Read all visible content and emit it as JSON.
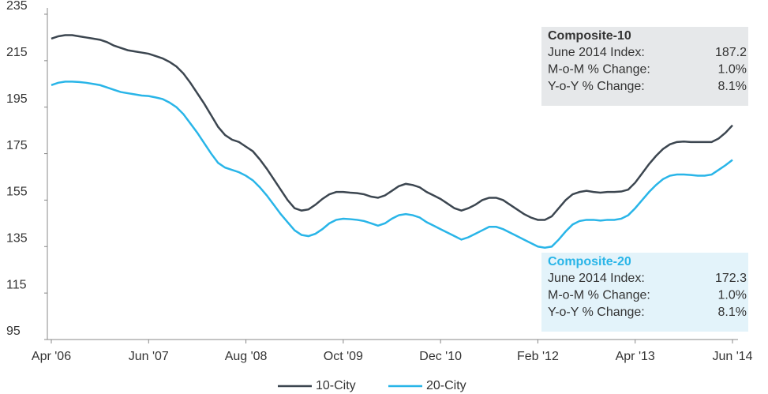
{
  "chart_data": {
    "type": "line",
    "categories": [
      "Apr '06",
      null,
      null,
      null,
      null,
      null,
      null,
      null,
      null,
      null,
      null,
      null,
      null,
      null,
      "Jun '07",
      null,
      null,
      null,
      null,
      null,
      null,
      null,
      null,
      null,
      null,
      null,
      null,
      null,
      "Aug '08",
      null,
      null,
      null,
      null,
      null,
      null,
      null,
      null,
      null,
      null,
      null,
      null,
      null,
      "Oct '09",
      null,
      null,
      null,
      null,
      null,
      null,
      null,
      null,
      null,
      null,
      null,
      null,
      null,
      "Dec '10",
      null,
      null,
      null,
      null,
      null,
      null,
      null,
      null,
      null,
      null,
      null,
      null,
      null,
      "Feb '12",
      null,
      null,
      null,
      null,
      null,
      null,
      null,
      null,
      null,
      null,
      null,
      null,
      null,
      "Apr '13",
      null,
      null,
      null,
      null,
      null,
      null,
      null,
      null,
      null,
      null,
      null,
      null,
      null,
      "Jun '14"
    ],
    "series": [
      {
        "name": "10-City",
        "color": "#3c4650",
        "values": [
          224.5,
          225.5,
          226,
          226,
          225.5,
          225,
          224.5,
          224,
          223,
          221.5,
          220.5,
          219.5,
          219,
          218.5,
          218,
          217,
          216,
          214.5,
          212.5,
          209.5,
          205.5,
          201,
          196.5,
          191.5,
          186.5,
          183,
          181,
          180,
          178,
          176,
          172.5,
          168.5,
          164,
          159.5,
          155,
          151.5,
          150.5,
          151,
          153,
          155.5,
          157.5,
          158.5,
          158.5,
          158.2,
          158,
          157.5,
          156.5,
          156,
          157,
          159,
          161,
          162,
          161.5,
          160.5,
          158.5,
          157,
          155.5,
          153.5,
          151.5,
          150.5,
          151.5,
          153,
          155,
          156,
          156,
          155,
          153,
          151,
          149,
          147.5,
          146.5,
          146.5,
          148,
          151.5,
          155,
          157.5,
          158.5,
          159,
          158.5,
          158.2,
          158.5,
          158.5,
          158.7,
          159.5,
          162.5,
          166.5,
          170.5,
          174,
          177,
          179,
          180,
          180.2,
          180,
          180,
          180,
          180,
          181.5,
          184,
          187.2
        ]
      },
      {
        "name": "20-City",
        "color": "#29b5e8",
        "values": [
          204.5,
          205.5,
          206,
          206,
          205.8,
          205.5,
          205,
          204.5,
          203.5,
          202.5,
          201.5,
          201,
          200.5,
          200,
          199.8,
          199.2,
          198.5,
          197,
          195,
          192,
          188,
          184,
          179.5,
          175,
          171,
          169,
          168,
          167,
          165.5,
          163.5,
          160.5,
          157,
          153,
          149,
          145.5,
          142,
          140,
          139.5,
          140.5,
          142.5,
          145,
          146.5,
          147,
          146.8,
          146.5,
          146,
          145,
          144,
          145,
          147,
          148.5,
          149,
          148.5,
          147.5,
          145.5,
          144,
          142.5,
          141,
          139.5,
          138,
          139,
          140.5,
          142,
          143.5,
          143.5,
          142.5,
          141,
          139.5,
          138,
          136.5,
          135,
          134.5,
          135,
          138,
          141.5,
          144.5,
          146,
          146.5,
          146.5,
          146.2,
          146.5,
          146.5,
          147,
          148.5,
          151.5,
          155,
          158.5,
          161.5,
          164,
          165.5,
          166,
          166,
          165.8,
          165.5,
          165.5,
          166,
          168,
          170,
          172.3
        ]
      }
    ],
    "ylim": [
      95,
      235
    ],
    "yticks": [
      95,
      115,
      135,
      155,
      175,
      195,
      215,
      235
    ],
    "annotations": [
      {
        "title": "Composite-10",
        "rows": [
          [
            "June 2014 Index:",
            "187.2"
          ],
          [
            "M-o-M % Change:",
            "1.0%"
          ],
          [
            "Y-o-Y % Change:",
            "8.1%"
          ]
        ]
      },
      {
        "title": "Composite-20",
        "rows": [
          [
            "June 2014 Index:",
            "172.3"
          ],
          [
            "M-o-M % Change:",
            "1.0%"
          ],
          [
            "Y-o-Y % Change:",
            "8.1%"
          ]
        ]
      }
    ]
  }
}
